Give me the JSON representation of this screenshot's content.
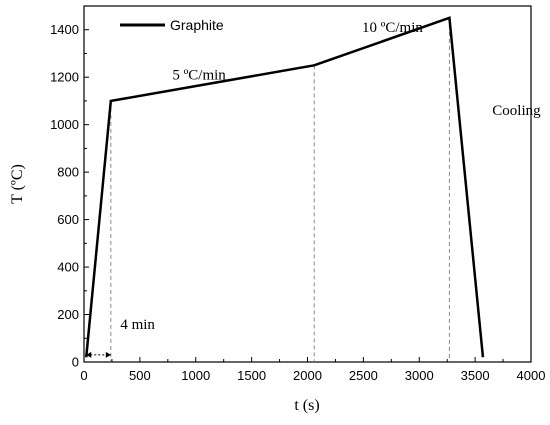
{
  "chart_data": {
    "type": "line",
    "title": "",
    "xlabel": "t (s)",
    "ylabel": "T (ºC)",
    "xlim": [
      0,
      4000
    ],
    "ylim": [
      0,
      1500
    ],
    "x_ticks": [
      "0",
      "500",
      "1000",
      "1500",
      "2000",
      "2500",
      "3000",
      "3500",
      "4000"
    ],
    "y_ticks": [
      "0",
      "200",
      "400",
      "600",
      "800",
      "1000",
      "1200",
      "1400"
    ],
    "grid": false,
    "legend_position": "top-left",
    "series": [
      {
        "name": "Graphite",
        "color": "#000000",
        "x": [
          20,
          240,
          2060,
          3270,
          3570
        ],
        "y": [
          20,
          1100,
          1250,
          1450,
          20
        ]
      }
    ],
    "reference_lines_x": [
      240,
      2060,
      3270
    ],
    "annotations": [
      {
        "text": "5 ºC/min",
        "x": 1030,
        "y": 1190
      },
      {
        "text": "10 ºC/min",
        "x": 2760,
        "y": 1390
      },
      {
        "text": "Cooling",
        "x": 3870,
        "y": 1040
      },
      {
        "text": "4 min",
        "x": 480,
        "y": 140
      }
    ],
    "arrow": {
      "from_x": 20,
      "to_x": 240,
      "y": 30
    }
  }
}
